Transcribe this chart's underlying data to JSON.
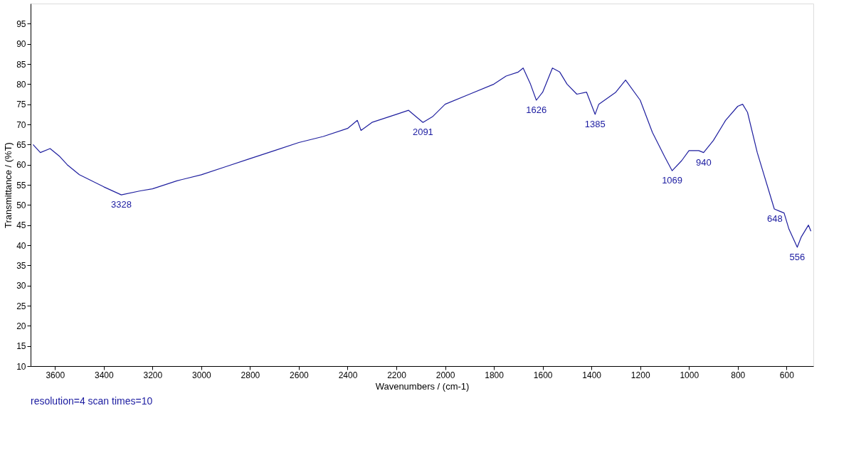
{
  "chart_data": {
    "type": "line",
    "xlabel": "Wavenumbers / (cm-1)",
    "ylabel": "Transmittance / (%T)",
    "x": [
      3690,
      3660,
      3620,
      3580,
      3550,
      3500,
      3450,
      3400,
      3328,
      3250,
      3200,
      3100,
      3000,
      2900,
      2800,
      2700,
      2600,
      2500,
      2400,
      2360,
      2345,
      2300,
      2200,
      2150,
      2091,
      2050,
      2000,
      1900,
      1800,
      1750,
      1700,
      1680,
      1650,
      1626,
      1600,
      1560,
      1530,
      1500,
      1460,
      1420,
      1385,
      1370,
      1300,
      1260,
      1200,
      1150,
      1100,
      1069,
      1030,
      1000,
      960,
      940,
      900,
      850,
      800,
      780,
      760,
      720,
      680,
      650,
      630,
      610,
      590,
      556,
      540,
      510,
      500
    ],
    "series": [
      {
        "color": "#1f1f9f",
        "values": [
          65,
          63,
          64,
          62,
          60,
          57.5,
          56,
          54.5,
          52.5,
          53.5,
          54,
          56,
          57.5,
          59.5,
          61.5,
          63.5,
          65.5,
          67,
          69,
          71,
          68.5,
          70.5,
          72.5,
          73.5,
          70.5,
          72,
          75,
          77.5,
          80,
          82,
          83,
          84,
          80,
          76,
          78,
          84,
          83,
          80,
          77.5,
          78,
          72.5,
          75,
          78,
          81,
          76,
          68,
          62,
          58.5,
          61,
          63.5,
          63.5,
          63,
          66,
          71,
          74.5,
          75,
          73,
          63,
          55,
          49,
          48.5,
          48,
          44,
          39.5,
          42,
          45,
          43.5
        ]
      }
    ],
    "xlim": [
      3700,
      490
    ],
    "xticks": [
      3600,
      3400,
      3200,
      3000,
      2800,
      2600,
      2400,
      2200,
      2000,
      1800,
      1600,
      1400,
      1200,
      1000,
      800,
      600
    ],
    "ylim": [
      10,
      100
    ],
    "yticks": [
      10,
      15,
      20,
      25,
      30,
      35,
      40,
      45,
      50,
      55,
      60,
      65,
      70,
      75,
      80,
      85,
      90,
      95
    ],
    "grid": false,
    "annotations": [
      {
        "text": "3328",
        "x": 3328,
        "y": 52.5
      },
      {
        "text": "2091",
        "x": 2091,
        "y": 70.5
      },
      {
        "text": "1626",
        "x": 1626,
        "y": 76
      },
      {
        "text": "1385",
        "x": 1385,
        "y": 72.5
      },
      {
        "text": "1069",
        "x": 1069,
        "y": 58.5
      },
      {
        "text": "940",
        "x": 940,
        "y": 63
      },
      {
        "text": "648",
        "x": 648,
        "y": 49
      },
      {
        "text": "556",
        "x": 556,
        "y": 39.5
      },
      "resolution=4 scan times=10"
    ]
  }
}
